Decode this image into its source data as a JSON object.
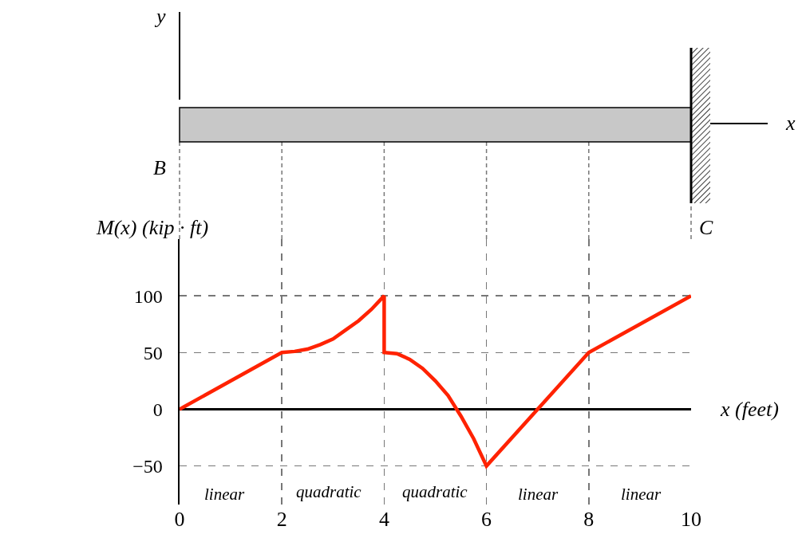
{
  "chart_data": {
    "type": "line",
    "ylabel": "M(x) (kip · ft)",
    "xlabel": "x (feet)",
    "xlim": [
      0,
      10
    ],
    "xticks": [
      0,
      2,
      4,
      6,
      8,
      10
    ],
    "ylim": [
      -84,
      150
    ],
    "yticks": [
      {
        "value": -50,
        "label": "−50"
      },
      0,
      50,
      100
    ],
    "grid": true,
    "marker": "none",
    "line_style": "solid",
    "x": [
      0,
      2,
      2.25,
      2.5,
      2.75,
      3,
      3.25,
      3.5,
      3.75,
      4,
      4,
      4.25,
      4.5,
      4.75,
      5,
      5.25,
      5.5,
      5.75,
      6,
      8,
      10
    ],
    "series": [
      {
        "color": "#ff2200",
        "values": [
          0,
          50,
          51,
          53,
          57,
          62,
          70,
          78,
          88,
          100,
          50,
          49,
          44,
          36,
          25,
          12,
          -6,
          -26,
          -50,
          50,
          100
        ]
      }
    ],
    "annotations": [
      "linear",
      "quadratic",
      "quadratic",
      "linear",
      "linear",
      "y",
      "x",
      "B",
      "C"
    ]
  }
}
